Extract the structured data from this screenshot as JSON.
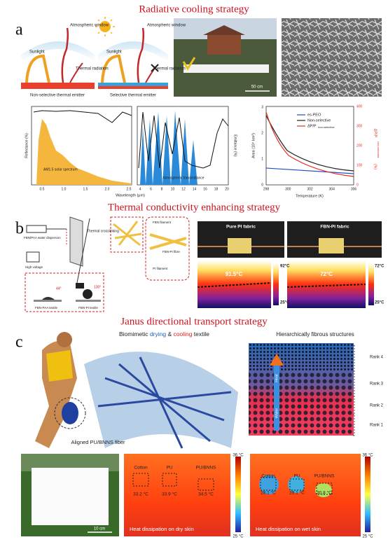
{
  "titles": [
    "Radiative cooling strategy",
    "Thermal conductivity enhancing strategy",
    "Janus directional transport strategy"
  ],
  "panel_labels": [
    "a",
    "b",
    "c"
  ],
  "panel_a": {
    "emitters": [
      {
        "window": "Atmospheric window",
        "sunlight": "Sunlight",
        "radiation": "Thermal radiation",
        "label": "Non-selective thermal emitter"
      },
      {
        "window": "Atmospheric window",
        "sunlight": "Sunlight",
        "radiation": "Thermal radiation",
        "label": "Selective thermal emitter"
      }
    ],
    "photo_scale": "50 cm",
    "spectrum": {
      "y_label": "Reflectance (%)",
      "y2_label": "Emittance (%)",
      "x_label": "Wavelength (μm)",
      "solar": "AM1.5 solar spectrum",
      "atmos": "Atmospheric transmittance",
      "xticks_left": [
        "0.5",
        "1.0",
        "1.5",
        "2.0",
        "2.5"
      ],
      "xticks_right": [
        "4",
        "6",
        "8",
        "10",
        "12",
        "14",
        "16",
        "18",
        "20"
      ]
    },
    "area_chart": {
      "legend": [
        "es-PEO",
        "Non-selective",
        "ΔP/P"
      ],
      "legend_sub": "non-selective",
      "y_label": "Area (10⁴ km²)",
      "y2_label": "ΔP/P",
      "y2_sub": "non-selective",
      "y2_unit": "(%)",
      "x_label": "Temperature (K)",
      "xticks": [
        "298",
        "300",
        "302",
        "304",
        "306"
      ],
      "yticks": [
        "0",
        "1",
        "2",
        "3"
      ],
      "y2ticks": [
        "0",
        "100",
        "200",
        "300",
        "400"
      ]
    }
  },
  "panel_b": {
    "dispersion": "FBN/PAA water dispersion",
    "voltage": "High voltage",
    "crosslink": "Thermal crosslinking",
    "fbn_filament": "FBN filament",
    "fibre": "FBN-PI fibre",
    "pi_filament": "PI filament",
    "paa_textile": "FBN-PAA textile",
    "pi_textile": "FBN-PI textile",
    "angle1": "44°",
    "angle2": "130°",
    "fabrics": [
      {
        "label": "Pure PI fabric",
        "temp": "91.5°C",
        "scale_max": "92°C",
        "scale_min": "25°C"
      },
      {
        "label": "FBN-PI fabric",
        "temp": "72°C",
        "scale_max": "72°C",
        "scale_min": "25°C"
      }
    ]
  },
  "panel_c": {
    "headline": [
      "Biomimetic ",
      "drying",
      " & ",
      "cooling",
      " textile"
    ],
    "structures": "Hierarchically fibrous structures",
    "ranks": [
      "Rank 4",
      "Rank 3",
      "Rank 2",
      "Rank 1"
    ],
    "heat": "Heat",
    "water": "Water",
    "fiber": "Aligned PU/BNNS fiber",
    "photo_scale": "10 cm",
    "thermal": [
      {
        "caption": "Heat dissipation on dry skin",
        "max": "36 °C",
        "min": "25 °C",
        "samples": [
          {
            "name": "Cotton",
            "temp": "33.2 °C"
          },
          {
            "name": "PU",
            "temp": "33.9 °C"
          },
          {
            "name": "PU/BNNS",
            "temp": "34.5 °C"
          }
        ]
      },
      {
        "caption": "Heat dissipation on wet skin",
        "max": "36 °C",
        "min": "25 °C",
        "samples": [
          {
            "name": "Cotton",
            "temp": "28.1 °C"
          },
          {
            "name": "PU",
            "temp": "29.1 °C"
          },
          {
            "name": "PU/BNNS",
            "temp": "30.8 °C"
          }
        ]
      }
    ]
  }
}
